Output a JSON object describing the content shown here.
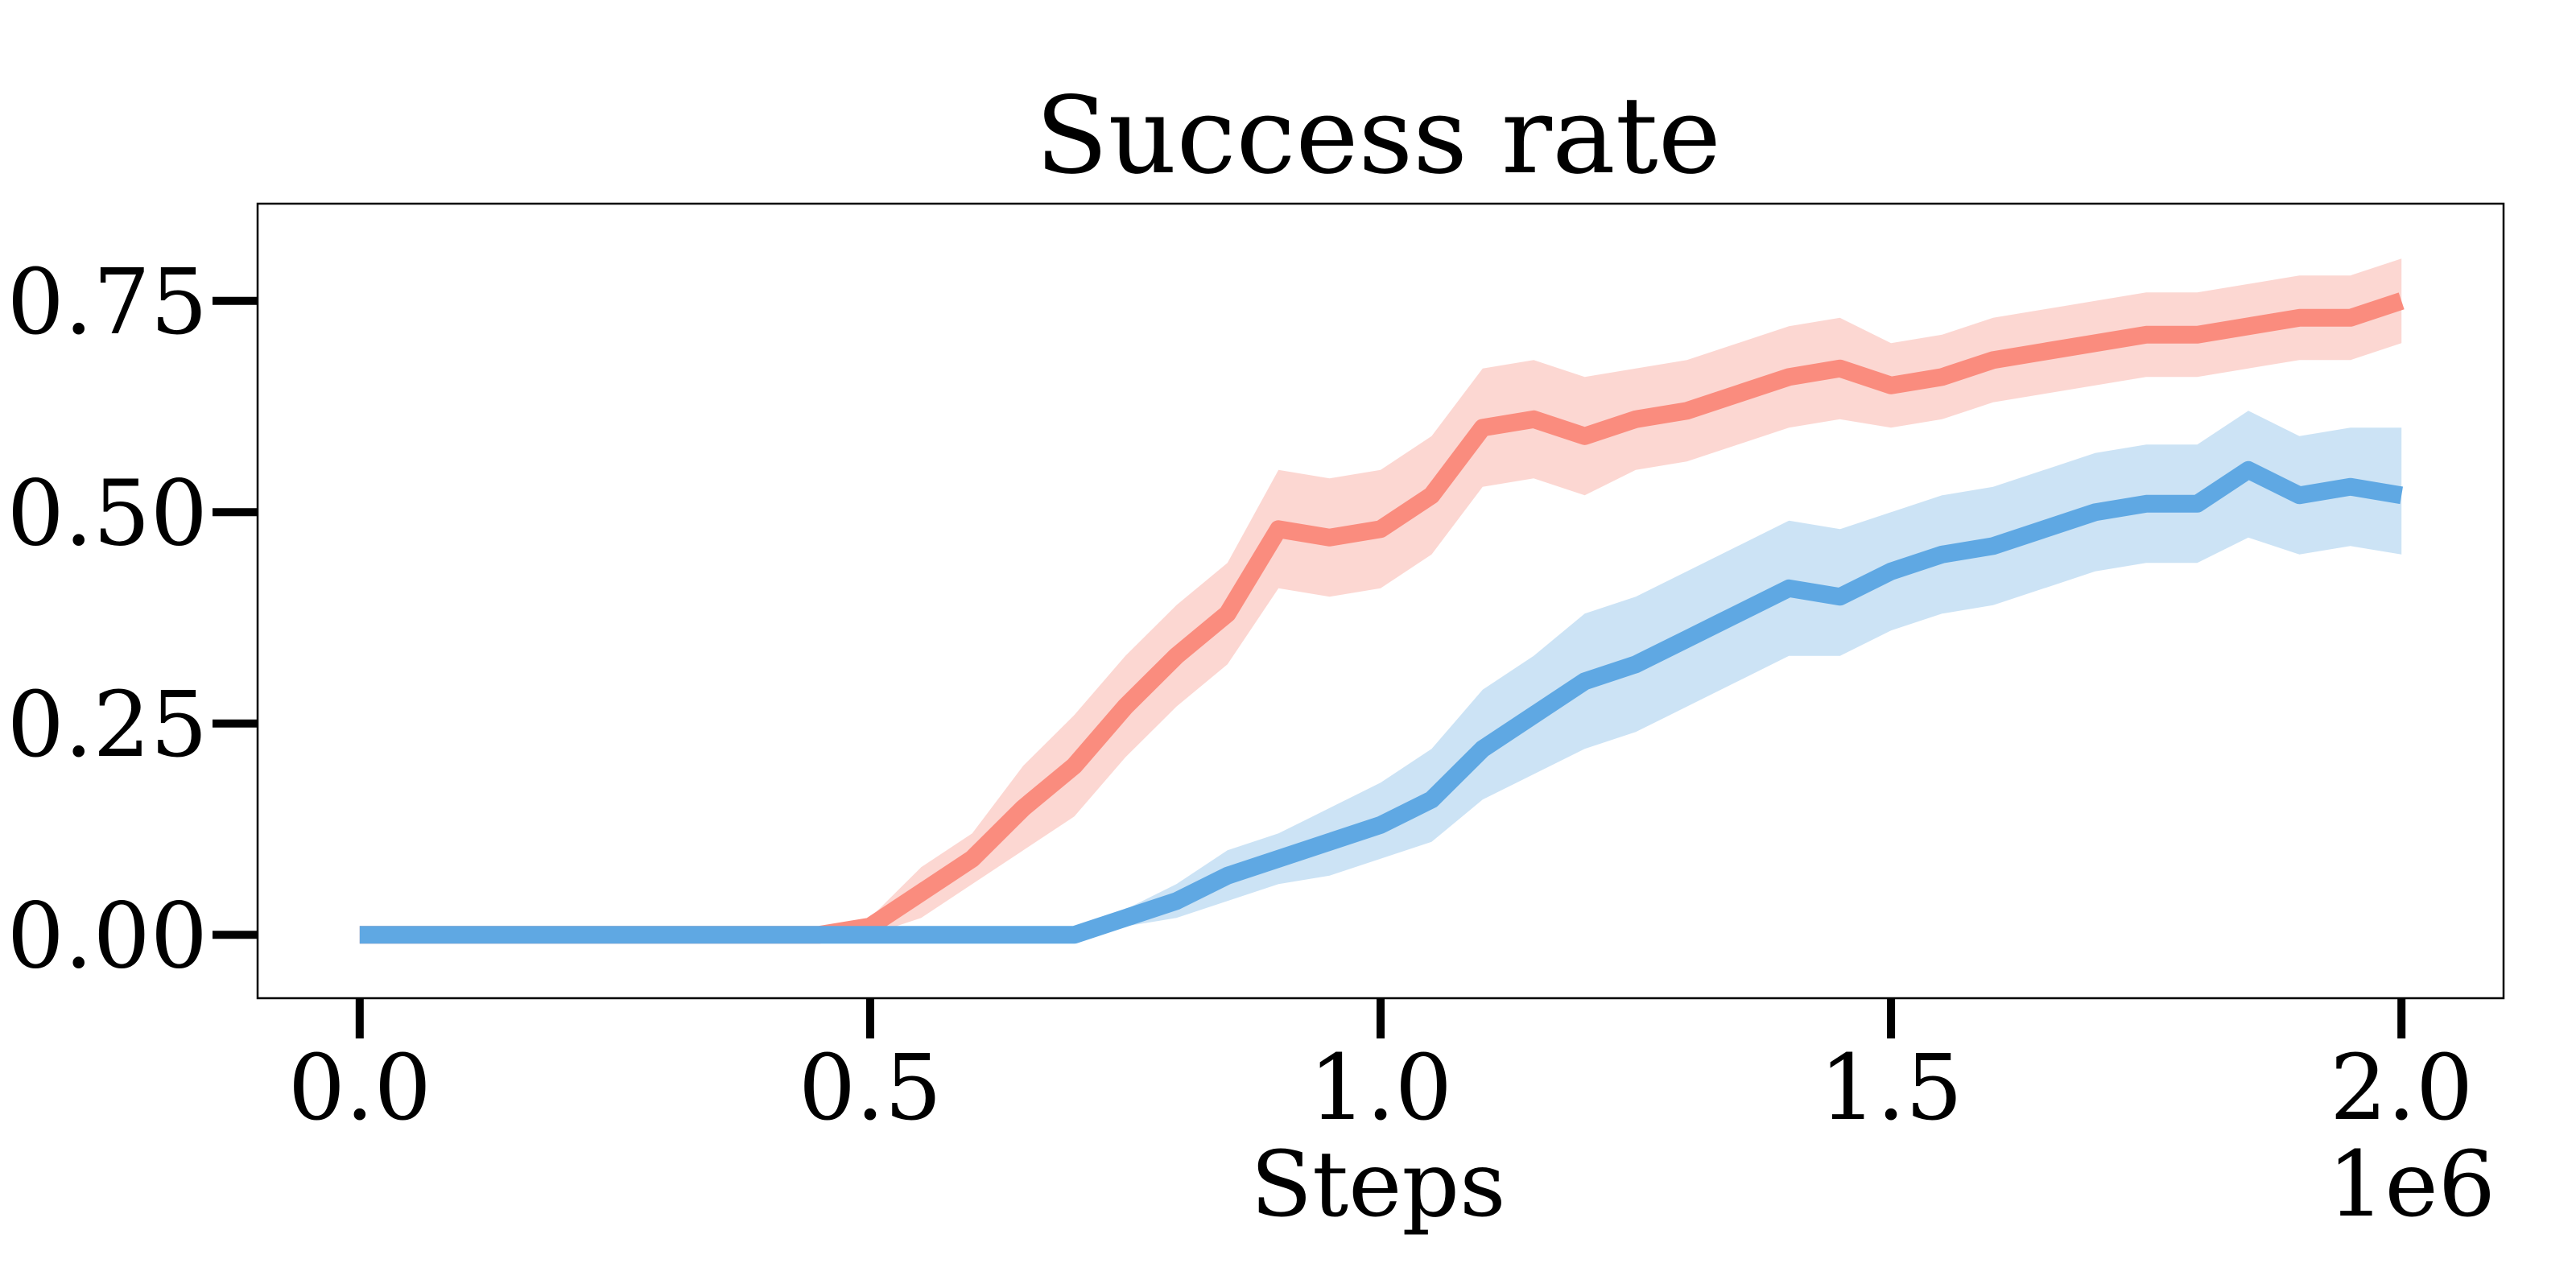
{
  "chart_data": {
    "type": "line",
    "title": "Success rate",
    "xlabel": "Steps",
    "ylabel": "",
    "x_offset_label": "1e6",
    "xlim": [
      -0.1,
      2.1
    ],
    "ylim": [
      -0.075,
      0.865
    ],
    "x_ticks": [
      0.0,
      0.5,
      1.0,
      1.5,
      2.0
    ],
    "x_tick_labels": [
      "0.0",
      "0.5",
      "1.0",
      "1.5",
      "2.0"
    ],
    "y_ticks": [
      0.0,
      0.25,
      0.5,
      0.75
    ],
    "y_tick_labels": [
      "0.00",
      "0.25",
      "0.50",
      "0.75"
    ],
    "grid": false,
    "legend": "none",
    "series": [
      {
        "color": "#FA8C7E",
        "band_color": "#FBC6BF",
        "x": [
          0.0,
          0.45,
          0.5,
          0.55,
          0.6,
          0.65,
          0.7,
          0.75,
          0.8,
          0.85,
          0.9,
          0.95,
          1.0,
          1.05,
          1.1,
          1.15,
          1.2,
          1.25,
          1.3,
          1.35,
          1.4,
          1.45,
          1.5,
          1.55,
          1.6,
          1.65,
          1.7,
          1.75,
          1.8,
          1.85,
          1.9,
          1.95,
          2.0
        ],
        "y": [
          0.0,
          0.0,
          0.01,
          0.05,
          0.09,
          0.15,
          0.2,
          0.27,
          0.33,
          0.38,
          0.48,
          0.47,
          0.48,
          0.52,
          0.6,
          0.61,
          0.59,
          0.61,
          0.62,
          0.64,
          0.66,
          0.67,
          0.65,
          0.66,
          0.68,
          0.69,
          0.7,
          0.71,
          0.71,
          0.72,
          0.73,
          0.73,
          0.75
        ],
        "lower": [
          0.0,
          0.0,
          0.0,
          0.02,
          0.06,
          0.1,
          0.14,
          0.21,
          0.27,
          0.32,
          0.41,
          0.4,
          0.41,
          0.45,
          0.53,
          0.54,
          0.52,
          0.55,
          0.56,
          0.58,
          0.6,
          0.61,
          0.6,
          0.61,
          0.63,
          0.64,
          0.65,
          0.66,
          0.66,
          0.67,
          0.68,
          0.68,
          0.7
        ],
        "upper": [
          0.0,
          0.0,
          0.02,
          0.08,
          0.12,
          0.2,
          0.26,
          0.33,
          0.39,
          0.44,
          0.55,
          0.54,
          0.55,
          0.59,
          0.67,
          0.68,
          0.66,
          0.67,
          0.68,
          0.7,
          0.72,
          0.73,
          0.7,
          0.71,
          0.73,
          0.74,
          0.75,
          0.76,
          0.76,
          0.77,
          0.78,
          0.78,
          0.8
        ]
      },
      {
        "color": "#5FA8E3",
        "band_color": "#B7D7F1",
        "x": [
          0.0,
          0.7,
          0.75,
          0.8,
          0.85,
          0.9,
          0.95,
          1.0,
          1.05,
          1.1,
          1.15,
          1.2,
          1.25,
          1.3,
          1.35,
          1.4,
          1.45,
          1.5,
          1.55,
          1.6,
          1.65,
          1.7,
          1.75,
          1.8,
          1.85,
          1.9,
          1.95,
          2.0
        ],
        "y": [
          0.0,
          0.0,
          0.02,
          0.04,
          0.07,
          0.09,
          0.11,
          0.13,
          0.16,
          0.22,
          0.26,
          0.3,
          0.32,
          0.35,
          0.38,
          0.41,
          0.4,
          0.43,
          0.45,
          0.46,
          0.48,
          0.5,
          0.51,
          0.51,
          0.55,
          0.52,
          0.53,
          0.52
        ],
        "lower": [
          0.0,
          0.0,
          0.01,
          0.02,
          0.04,
          0.06,
          0.07,
          0.09,
          0.11,
          0.16,
          0.19,
          0.22,
          0.24,
          0.27,
          0.3,
          0.33,
          0.33,
          0.36,
          0.38,
          0.39,
          0.41,
          0.43,
          0.44,
          0.44,
          0.47,
          0.45,
          0.46,
          0.45
        ],
        "upper": [
          0.0,
          0.0,
          0.03,
          0.06,
          0.1,
          0.12,
          0.15,
          0.18,
          0.22,
          0.29,
          0.33,
          0.38,
          0.4,
          0.43,
          0.46,
          0.49,
          0.48,
          0.5,
          0.52,
          0.53,
          0.55,
          0.57,
          0.58,
          0.58,
          0.62,
          0.59,
          0.6,
          0.6
        ]
      }
    ]
  }
}
